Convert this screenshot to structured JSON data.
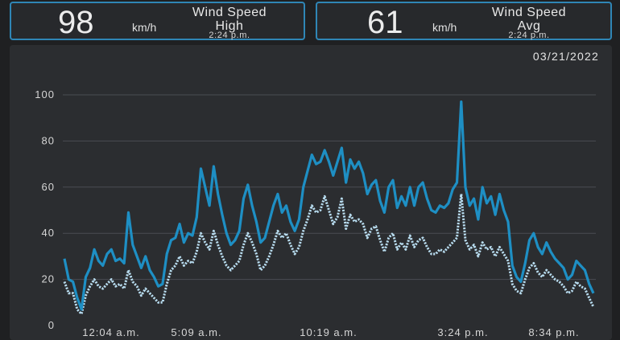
{
  "cards": [
    {
      "value": "98",
      "unit": "km/h",
      "title_line1": "Wind Speed",
      "title_line2": "High",
      "time": "2:24 p.m."
    },
    {
      "value": "61",
      "unit": "km/h",
      "title_line1": "Wind Speed",
      "title_line2": "Avg",
      "time": "2:24 p.m."
    }
  ],
  "date": "03/21/2022",
  "chart_data": {
    "type": "line",
    "title": "",
    "x_tick_labels": [
      "12:04 a.m.",
      "5:09 a.m.",
      "10:19 a.m.",
      "3:24 p.m.",
      "8:34 p.m."
    ],
    "y_ticks": [
      0,
      20,
      40,
      60,
      80,
      100
    ],
    "ylim": [
      0,
      100
    ],
    "grid": true,
    "colors": {
      "high": "#1e8fc4",
      "avg": "#b8dcef"
    },
    "series": [
      {
        "values": [
          29,
          20,
          19,
          12,
          7,
          21,
          25,
          33,
          28,
          26,
          31,
          33,
          28,
          29,
          27,
          49,
          35,
          30,
          25,
          30,
          24,
          21,
          17,
          18,
          31,
          37,
          38,
          44,
          36,
          40,
          39,
          47,
          68,
          60,
          52,
          69,
          57,
          48,
          40,
          35,
          37,
          41,
          55,
          61,
          52,
          45,
          36,
          38,
          45,
          52,
          57,
          49,
          52,
          45,
          41,
          46,
          60,
          67,
          74,
          70,
          71,
          76,
          71,
          65,
          71,
          77,
          62,
          72,
          68,
          71,
          66,
          57,
          61,
          63,
          54,
          49,
          60,
          63,
          51,
          56,
          52,
          60,
          52,
          60,
          62,
          55,
          50,
          49,
          52,
          51,
          53,
          59,
          62,
          97,
          60,
          52,
          55,
          46,
          60,
          53,
          56,
          48,
          57,
          50,
          45,
          26,
          21,
          19,
          27,
          37,
          40,
          34,
          31,
          36,
          32,
          29,
          27,
          25,
          20,
          22,
          28,
          26,
          24,
          18,
          14
        ]
      },
      {
        "values": [
          19,
          14,
          14,
          7,
          5,
          13,
          17,
          20,
          17,
          16,
          18,
          20,
          17,
          18,
          16,
          24,
          19,
          17,
          13,
          16,
          14,
          12,
          10,
          10,
          18,
          24,
          26,
          30,
          26,
          28,
          27,
          32,
          40,
          36,
          33,
          41,
          35,
          30,
          26,
          24,
          26,
          28,
          35,
          40,
          36,
          31,
          24,
          26,
          30,
          35,
          41,
          38,
          40,
          35,
          31,
          34,
          41,
          46,
          52,
          49,
          50,
          56,
          50,
          44,
          47,
          55,
          42,
          48,
          45,
          46,
          44,
          38,
          42,
          43,
          37,
          32,
          38,
          40,
          33,
          36,
          33,
          39,
          34,
          37,
          38,
          34,
          31,
          31,
          33,
          32,
          34,
          36,
          38,
          57,
          37,
          33,
          35,
          30,
          36,
          33,
          34,
          30,
          34,
          31,
          28,
          18,
          15,
          14,
          20,
          25,
          27,
          23,
          21,
          24,
          22,
          20,
          19,
          17,
          14,
          15,
          19,
          17,
          16,
          12,
          8
        ]
      }
    ]
  }
}
